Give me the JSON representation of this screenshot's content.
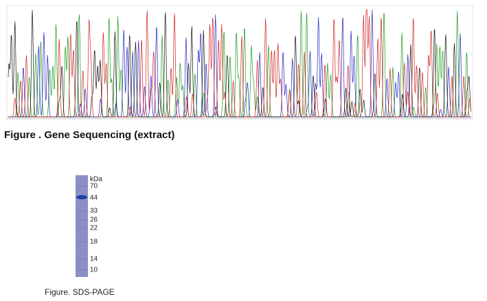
{
  "figure_sequencing": {
    "caption": "Figure . Gene Sequencing (extract)"
  },
  "figure_sds_page": {
    "caption": "Figure. SDS-PAGE",
    "unit": "kDa",
    "markers": [
      70,
      44,
      33,
      26,
      22,
      18,
      14,
      10
    ]
  }
}
